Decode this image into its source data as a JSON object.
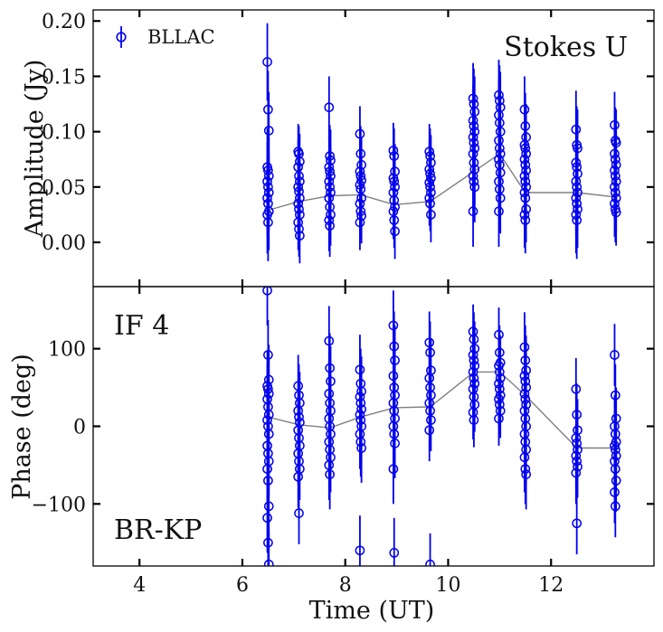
{
  "chart_data": [
    {
      "type": "scatter",
      "panel": "top",
      "ylabel": "Amplitude (Jy)",
      "annotation": "Stokes U",
      "legend": "BLLAC",
      "legend_position": "top-left",
      "xlim": [
        3.1,
        14.0
      ],
      "ylim": [
        -0.04,
        0.21
      ],
      "yticks": [
        0.0,
        0.05,
        0.1,
        0.15,
        0.2
      ],
      "ytick_labels": [
        "0.00",
        "0.05",
        "0.10",
        "0.15",
        "0.20"
      ],
      "marker_color": "#0000ee",
      "line_color": "#808080",
      "mean_line": {
        "x": [
          6.5,
          7.1,
          7.7,
          8.3,
          8.95,
          9.65,
          10.5,
          11.0,
          11.5,
          12.5,
          13.25
        ],
        "y": [
          0.029,
          0.037,
          0.042,
          0.043,
          0.034,
          0.037,
          0.064,
          0.08,
          0.045,
          0.045,
          0.041
        ]
      },
      "scans": [
        {
          "x": 6.5,
          "y": [
            0.163,
            0.12,
            0.101,
            0.068,
            0.065,
            0.06,
            0.055,
            0.05,
            0.045,
            0.04,
            0.035,
            0.028,
            0.025,
            0.018
          ],
          "err": 0.035
        },
        {
          "x": 7.1,
          "y": [
            0.082,
            0.08,
            0.073,
            0.068,
            0.06,
            0.055,
            0.05,
            0.046,
            0.04,
            0.035,
            0.03,
            0.025,
            0.018,
            0.012,
            0.006
          ],
          "err": 0.025
        },
        {
          "x": 7.7,
          "y": [
            0.122,
            0.078,
            0.074,
            0.068,
            0.064,
            0.06,
            0.055,
            0.05,
            0.045,
            0.04,
            0.032,
            0.025,
            0.02,
            0.015
          ],
          "err": 0.028
        },
        {
          "x": 8.3,
          "y": [
            0.098,
            0.08,
            0.07,
            0.064,
            0.06,
            0.056,
            0.052,
            0.048,
            0.04,
            0.035,
            0.028,
            0.024,
            0.018
          ],
          "err": 0.025
        },
        {
          "x": 8.95,
          "y": [
            0.083,
            0.078,
            0.064,
            0.058,
            0.055,
            0.05,
            0.045,
            0.038,
            0.032,
            0.028,
            0.02,
            0.01
          ],
          "err": 0.025
        },
        {
          "x": 9.65,
          "y": [
            0.082,
            0.078,
            0.072,
            0.066,
            0.062,
            0.058,
            0.054,
            0.05,
            0.045,
            0.04,
            0.035,
            0.025
          ],
          "err": 0.025
        },
        {
          "x": 10.5,
          "y": [
            0.13,
            0.125,
            0.118,
            0.11,
            0.105,
            0.1,
            0.095,
            0.09,
            0.085,
            0.08,
            0.072,
            0.066,
            0.06,
            0.055,
            0.05,
            0.028
          ],
          "err": 0.032
        },
        {
          "x": 11.0,
          "y": [
            0.133,
            0.128,
            0.122,
            0.115,
            0.108,
            0.1,
            0.092,
            0.085,
            0.08,
            0.075,
            0.07,
            0.063,
            0.055,
            0.048,
            0.04,
            0.028
          ],
          "err": 0.032
        },
        {
          "x": 11.5,
          "y": [
            0.12,
            0.105,
            0.095,
            0.088,
            0.085,
            0.08,
            0.075,
            0.07,
            0.065,
            0.06,
            0.055,
            0.05,
            0.045,
            0.04,
            0.03,
            0.025,
            0.02
          ],
          "err": 0.03
        },
        {
          "x": 12.5,
          "y": [
            0.102,
            0.088,
            0.085,
            0.072,
            0.068,
            0.062,
            0.055,
            0.05,
            0.045,
            0.04,
            0.035,
            0.03,
            0.025,
            0.02
          ],
          "err": 0.035
        },
        {
          "x": 13.25,
          "y": [
            0.106,
            0.092,
            0.09,
            0.08,
            0.075,
            0.07,
            0.065,
            0.06,
            0.055,
            0.05,
            0.045,
            0.04,
            0.035,
            0.03,
            0.027
          ],
          "err": 0.03
        }
      ]
    },
    {
      "type": "scatter",
      "panel": "bottom",
      "xlabel": "Time (UT)",
      "ylabel": "Phase (deg)",
      "annotations": [
        "IF 4",
        "BR-KP"
      ],
      "xlim": [
        3.1,
        14.0
      ],
      "ylim": [
        -180,
        180
      ],
      "xticks": [
        4,
        6,
        8,
        10,
        12
      ],
      "xtick_labels": [
        "4",
        "6",
        "8",
        "10",
        "12"
      ],
      "yticks": [
        -100,
        0,
        100
      ],
      "ytick_labels": [
        "−100",
        "0",
        "100"
      ],
      "marker_color": "#0000ee",
      "line_color": "#808080",
      "mean_line": {
        "x": [
          6.5,
          7.1,
          7.7,
          8.3,
          8.95,
          9.65,
          10.5,
          11.0,
          11.5,
          12.5,
          13.25
        ],
        "y": [
          12,
          2,
          -2,
          12,
          24,
          25,
          70,
          70,
          40,
          -28,
          -28
        ]
      },
      "scans": [
        {
          "x": 6.5,
          "y": [
            175,
            92,
            60,
            52,
            48,
            42,
            35,
            25,
            15,
            8,
            0,
            -10,
            -25,
            -35,
            -45,
            -55,
            -70,
            -103,
            -118,
            -150,
            -178
          ],
          "err": 45
        },
        {
          "x": 7.1,
          "y": [
            52,
            40,
            30,
            20,
            12,
            5,
            -5,
            -15,
            -25,
            -35,
            -45,
            -55,
            -65,
            -112
          ],
          "err": 40
        },
        {
          "x": 7.7,
          "y": [
            110,
            75,
            58,
            42,
            30,
            20,
            10,
            0,
            -10,
            -20,
            -30,
            -40,
            -50,
            -62
          ],
          "err": 45
        },
        {
          "x": 8.3,
          "y": [
            73,
            55,
            45,
            38,
            30,
            22,
            15,
            8,
            0,
            -10,
            -20,
            -28,
            -160
          ],
          "err": 45
        },
        {
          "x": 8.95,
          "y": [
            130,
            103,
            85,
            65,
            50,
            40,
            30,
            20,
            10,
            0,
            -10,
            -22,
            -55,
            -163
          ],
          "err": 45
        },
        {
          "x": 9.65,
          "y": [
            108,
            95,
            72,
            62,
            50,
            40,
            30,
            20,
            8,
            -5,
            -178
          ],
          "err": 40
        },
        {
          "x": 10.5,
          "y": [
            122,
            112,
            100,
            92,
            85,
            78,
            70,
            62,
            55,
            48,
            38,
            28,
            18,
            8
          ],
          "err": 35
        },
        {
          "x": 11.0,
          "y": [
            118,
            95,
            82,
            78,
            70,
            62,
            55,
            48,
            40,
            35,
            28,
            20,
            10
          ],
          "err": 35
        },
        {
          "x": 11.5,
          "y": [
            102,
            85,
            72,
            65,
            58,
            50,
            42,
            35,
            28,
            20,
            10,
            0,
            -10,
            -20,
            -30,
            -40,
            -55,
            -62
          ],
          "err": 45
        },
        {
          "x": 12.5,
          "y": [
            48,
            15,
            -5,
            -15,
            -22,
            -30,
            -38,
            -45,
            -52,
            -60,
            -125
          ],
          "err": 40
        },
        {
          "x": 13.25,
          "y": [
            92,
            40,
            10,
            0,
            -10,
            -20,
            -25,
            -30,
            -38,
            -45,
            -55,
            -70,
            -85,
            -103
          ],
          "err": 40
        }
      ]
    }
  ]
}
